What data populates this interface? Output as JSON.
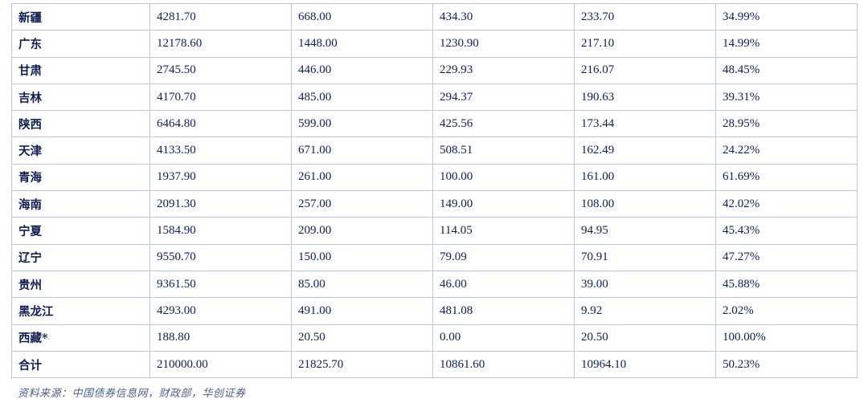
{
  "table": {
    "rows": [
      [
        "新疆",
        "4281.70",
        "668.00",
        "434.30",
        "233.70",
        "34.99%"
      ],
      [
        "广东",
        "12178.60",
        "1448.00",
        "1230.90",
        "217.10",
        "14.99%"
      ],
      [
        "甘肃",
        "2745.50",
        "446.00",
        "229.93",
        "216.07",
        "48.45%"
      ],
      [
        "吉林",
        "4170.70",
        "485.00",
        "294.37",
        "190.63",
        "39.31%"
      ],
      [
        "陕西",
        "6464.80",
        "599.00",
        "425.56",
        "173.44",
        "28.95%"
      ],
      [
        "天津",
        "4133.50",
        "671.00",
        "508.51",
        "162.49",
        "24.22%"
      ],
      [
        "青海",
        "1937.90",
        "261.00",
        "100.00",
        "161.00",
        "61.69%"
      ],
      [
        "海南",
        "2091.30",
        "257.00",
        "149.00",
        "108.00",
        "42.02%"
      ],
      [
        "宁夏",
        "1584.90",
        "209.00",
        "114.05",
        "94.95",
        "45.43%"
      ],
      [
        "辽宁",
        "9550.70",
        "150.00",
        "79.09",
        "70.91",
        "47.27%"
      ],
      [
        "贵州",
        "9361.50",
        "85.00",
        "46.00",
        "39.00",
        "45.88%"
      ],
      [
        "黑龙江",
        "4293.00",
        "491.00",
        "481.08",
        "9.92",
        "2.02%"
      ],
      [
        "西藏*",
        "188.80",
        "20.50",
        "0.00",
        "20.50",
        "100.00%"
      ]
    ],
    "total": [
      "合计",
      "210000.00",
      "21825.70",
      "10861.60",
      "10964.10",
      "50.23%"
    ]
  },
  "source": "资料来源：中国债券信息网，财政部，华创证券"
}
